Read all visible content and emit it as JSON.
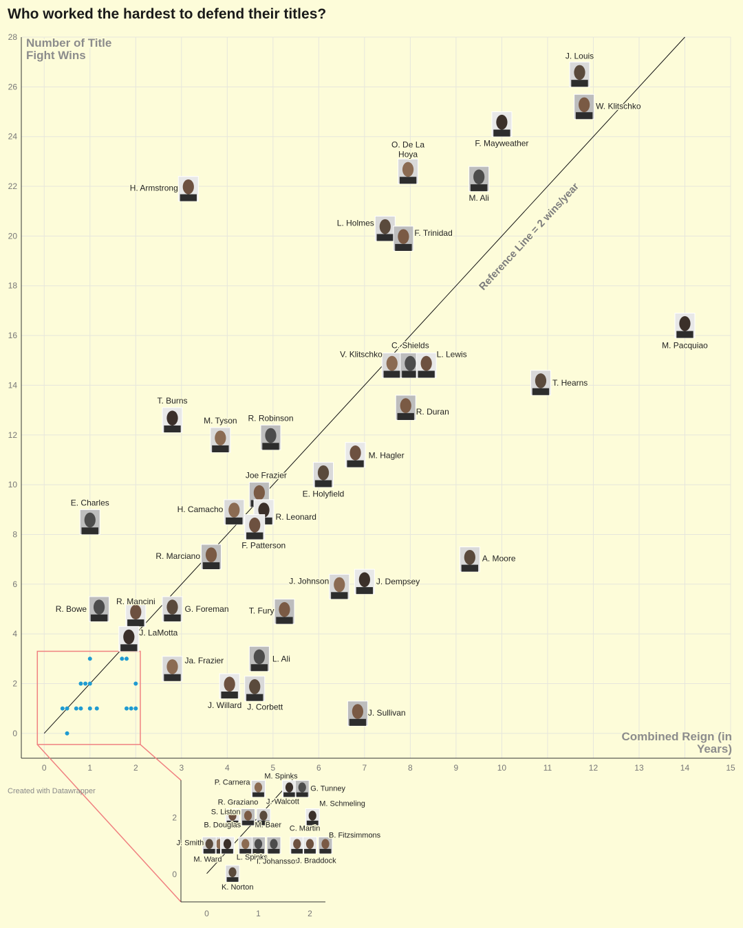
{
  "title": "Who worked the hardest to defend their titles?",
  "credit": "Created with Datawrapper",
  "chart_data": {
    "type": "scatter",
    "title": "Who worked the hardest to defend their titles?",
    "xlabel": "Combined Reign (in Years)",
    "ylabel": "Number of Title Fight Wins",
    "xlim": [
      -0.5,
      15
    ],
    "ylim": [
      -1,
      28
    ],
    "x_ticks": [
      0,
      1,
      2,
      3,
      4,
      5,
      6,
      7,
      8,
      9,
      10,
      11,
      12,
      13,
      14,
      15
    ],
    "y_ticks": [
      0,
      2,
      4,
      6,
      8,
      10,
      12,
      14,
      16,
      18,
      20,
      22,
      24,
      26,
      28
    ],
    "grid": true,
    "reference_line": {
      "label": "Reference Line = 2 wins/year",
      "slope": 2
    },
    "points": [
      {
        "name": "J. Louis",
        "x": 11.7,
        "y": 26.5
      },
      {
        "name": "W. Klitschko",
        "x": 11.8,
        "y": 25.2
      },
      {
        "name": "F. Mayweather",
        "x": 10.0,
        "y": 24.5
      },
      {
        "name": "O. De La Hoya",
        "x": 7.95,
        "y": 22.6
      },
      {
        "name": "M. Ali",
        "x": 9.5,
        "y": 22.3
      },
      {
        "name": "H. Armstrong",
        "x": 3.15,
        "y": 21.9
      },
      {
        "name": "L. Holmes",
        "x": 7.45,
        "y": 20.3
      },
      {
        "name": "F. Trinidad",
        "x": 7.85,
        "y": 19.9
      },
      {
        "name": "M. Pacquiao",
        "x": 14.0,
        "y": 16.4
      },
      {
        "name": "V. Klitschko",
        "x": 7.6,
        "y": 14.8
      },
      {
        "name": "C. Shields",
        "x": 8.0,
        "y": 14.8
      },
      {
        "name": "L. Lewis",
        "x": 8.35,
        "y": 14.8
      },
      {
        "name": "T. Hearns",
        "x": 10.85,
        "y": 14.1
      },
      {
        "name": "R. Duran",
        "x": 7.9,
        "y": 13.1
      },
      {
        "name": "T. Burns",
        "x": 2.8,
        "y": 12.6
      },
      {
        "name": "M. Tyson",
        "x": 3.85,
        "y": 11.8
      },
      {
        "name": "R. Robinson",
        "x": 4.95,
        "y": 11.9
      },
      {
        "name": "M. Hagler",
        "x": 6.8,
        "y": 11.2
      },
      {
        "name": "E. Holyfield",
        "x": 6.1,
        "y": 10.4
      },
      {
        "name": "Joe Frazier",
        "x": 4.7,
        "y": 9.6
      },
      {
        "name": "R. Leonard",
        "x": 4.8,
        "y": 8.9
      },
      {
        "name": "H. Camacho",
        "x": 4.15,
        "y": 8.9
      },
      {
        "name": "E. Charles",
        "x": 1.0,
        "y": 8.5
      },
      {
        "name": "F. Patterson",
        "x": 4.6,
        "y": 8.3
      },
      {
        "name": "A. Moore",
        "x": 9.3,
        "y": 7.0
      },
      {
        "name": "R. Marciano",
        "x": 3.65,
        "y": 7.1
      },
      {
        "name": "J. Dempsey",
        "x": 7.0,
        "y": 6.1
      },
      {
        "name": "J. Johnson",
        "x": 6.45,
        "y": 5.9
      },
      {
        "name": "R. Bowe",
        "x": 1.2,
        "y": 5.0
      },
      {
        "name": "R. Mancini",
        "x": 2.0,
        "y": 4.8
      },
      {
        "name": "G. Foreman",
        "x": 2.8,
        "y": 5.0
      },
      {
        "name": "T. Fury",
        "x": 5.25,
        "y": 4.9
      },
      {
        "name": "J. LaMotta",
        "x": 1.85,
        "y": 3.8
      },
      {
        "name": "Ja. Frazier",
        "x": 2.8,
        "y": 2.6
      },
      {
        "name": "L. Ali",
        "x": 4.7,
        "y": 3.0
      },
      {
        "name": "J. Willard",
        "x": 4.05,
        "y": 1.9
      },
      {
        "name": "J. Corbett",
        "x": 4.6,
        "y": 1.8
      },
      {
        "name": "J. Sullivan",
        "x": 6.85,
        "y": 0.8
      }
    ],
    "inset": {
      "xlim": [
        -0.5,
        2.3
      ],
      "ylim": [
        -1,
        3.3
      ],
      "x_ticks": [
        0,
        1,
        2
      ],
      "y_ticks": [
        0,
        2
      ],
      "points": [
        {
          "name": "M. Spinks",
          "x": 1.6,
          "y": 3.0
        },
        {
          "name": "P. Carnera",
          "x": 1.0,
          "y": 3.0
        },
        {
          "name": "G. Tunney",
          "x": 1.85,
          "y": 3.0
        },
        {
          "name": "R. Graziano",
          "x": 0.5,
          "y": 2.0
        },
        {
          "name": "J. Walcott",
          "x": 1.1,
          "y": 2.0
        },
        {
          "name": "S. Liston",
          "x": 0.8,
          "y": 2.0
        },
        {
          "name": "M. Schmeling",
          "x": 2.05,
          "y": 2.0
        },
        {
          "name": "B. Douglas",
          "x": 0.25,
          "y": 1.0
        },
        {
          "name": "M. Baer",
          "x": 1.0,
          "y": 1.0
        },
        {
          "name": "C. Martin",
          "x": 1.75,
          "y": 1.0
        },
        {
          "name": "J. Smith",
          "x": 0.05,
          "y": 1.0
        },
        {
          "name": "B. Fitzsimmons",
          "x": 2.3,
          "y": 1.0
        },
        {
          "name": "M. Ward",
          "x": 0.4,
          "y": 1.0
        },
        {
          "name": "L. Spinks",
          "x": 0.75,
          "y": 1.0
        },
        {
          "name": "I. Johansson",
          "x": 1.3,
          "y": 1.0
        },
        {
          "name": "J. Braddock",
          "x": 2.0,
          "y": 1.0
        },
        {
          "name": "K. Norton",
          "x": 0.5,
          "y": 0.0
        }
      ]
    },
    "small_dots": [
      [
        1.0,
        3.0
      ],
      [
        1.7,
        3.0
      ],
      [
        1.8,
        3.0
      ],
      [
        0.8,
        2.0
      ],
      [
        0.9,
        2.0
      ],
      [
        1.0,
        2.0
      ],
      [
        2.0,
        2.0
      ],
      [
        0.4,
        1.0
      ],
      [
        0.5,
        1.0
      ],
      [
        0.7,
        1.0
      ],
      [
        0.8,
        1.0
      ],
      [
        1.0,
        1.0
      ],
      [
        1.15,
        1.0
      ],
      [
        1.8,
        1.0
      ],
      [
        1.9,
        1.0
      ],
      [
        2.0,
        1.0
      ],
      [
        0.5,
        0.0
      ]
    ]
  },
  "colors": {
    "background": "#fdfcd9",
    "grid": "#e6e6dc",
    "axis": "#333333",
    "dots": "#1f9bd1",
    "inset_box": "#f08080"
  }
}
